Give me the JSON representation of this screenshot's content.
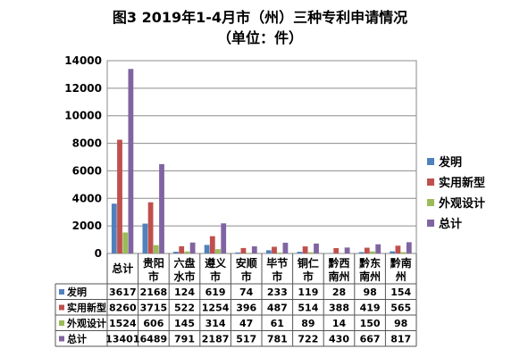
{
  "chart_data": {
    "type": "bar",
    "title": "图3 2019年1-4月市（州）三种专利申请情况",
    "subtitle": "（单位：件）",
    "categories": [
      "总计",
      "贵阳市",
      "六盘水市",
      "遵义市",
      "安顺市",
      "毕节市",
      "铜仁市",
      "黔西南州",
      "黔东南州",
      "黔南州"
    ],
    "category_lines": [
      [
        "总计"
      ],
      [
        "贵阳",
        "市"
      ],
      [
        "六盘",
        "水市"
      ],
      [
        "遵义",
        "市"
      ],
      [
        "安顺",
        "市"
      ],
      [
        "毕节",
        "市"
      ],
      [
        "铜仁",
        "市"
      ],
      [
        "黔西",
        "南州"
      ],
      [
        "黔东",
        "南州"
      ],
      [
        "黔南",
        "州"
      ]
    ],
    "series": [
      {
        "name": "发明",
        "color": "#4F81BD",
        "values": [
          3617,
          2168,
          124,
          619,
          74,
          233,
          119,
          28,
          98,
          154
        ]
      },
      {
        "name": "实用新型",
        "color": "#C0504D",
        "values": [
          8260,
          3715,
          522,
          1254,
          396,
          487,
          514,
          388,
          419,
          565
        ]
      },
      {
        "name": "外观设计",
        "color": "#9BBB59",
        "values": [
          1524,
          606,
          145,
          314,
          47,
          61,
          89,
          14,
          150,
          98
        ]
      },
      {
        "name": "总计",
        "color": "#8064A2",
        "values": [
          13401,
          6489,
          791,
          2187,
          517,
          781,
          722,
          430,
          667,
          817
        ]
      }
    ],
    "ylim": [
      0,
      14000
    ],
    "yticks": [
      0,
      2000,
      4000,
      6000,
      8000,
      10000,
      12000,
      14000
    ],
    "grid": true,
    "legend": "right",
    "data_table": true
  }
}
